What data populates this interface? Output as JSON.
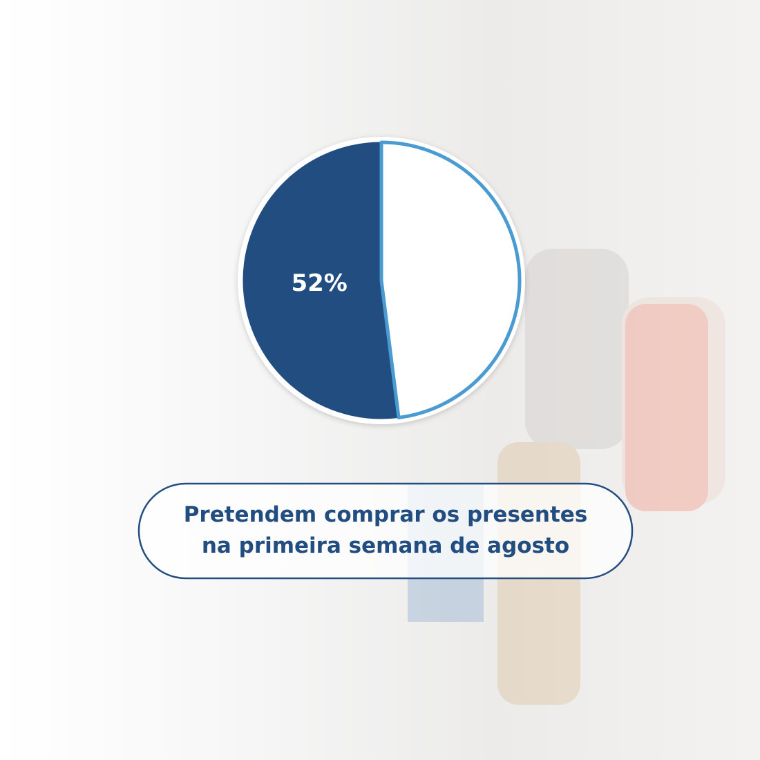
{
  "chart_data": {
    "type": "pie",
    "values": [
      52,
      48
    ],
    "value_labels": [
      "52%",
      null
    ],
    "colors": [
      "#214d80",
      "#ffffff"
    ],
    "annotation": [
      "Pretendem comprar os presentes",
      "na primeira semana de agosto"
    ]
  }
}
